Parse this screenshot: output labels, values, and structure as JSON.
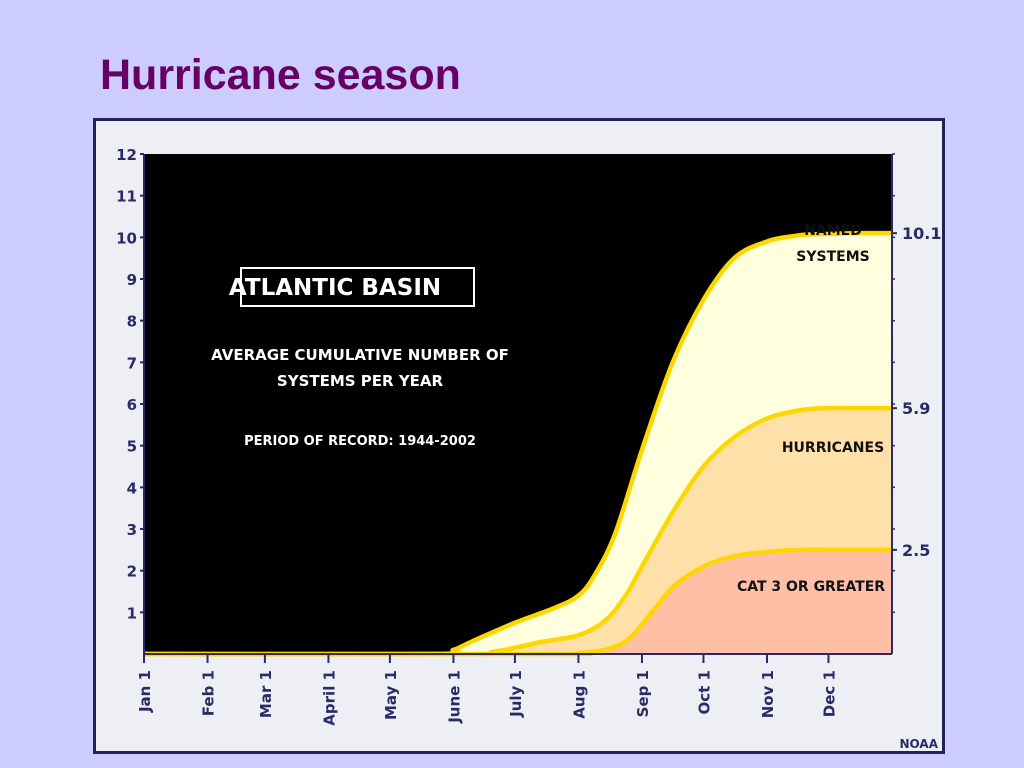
{
  "slide": {
    "title": "Hurricane season"
  },
  "chart_data": {
    "type": "area",
    "title": "ATLANTIC BASIN",
    "subtitle": "AVERAGE CUMULATIVE NUMBER OF SYSTEMS PER YEAR",
    "note": "PERIOD OF RECORD: 1944-2002",
    "source": "NOAA",
    "xlabel": "",
    "ylabel": "",
    "ylim": [
      0,
      12
    ],
    "yticks": [
      "1",
      "2",
      "3",
      "4",
      "5",
      "6",
      "7",
      "8",
      "9",
      "10",
      "11",
      "12"
    ],
    "x_ticks": [
      "Jan 1",
      "Feb 1",
      "Mar 1",
      "April 1",
      "May 1",
      "June 1",
      "July 1",
      "Aug 1",
      "Sep 1",
      "Oct 1",
      "Nov 1",
      "Dec 1"
    ],
    "x_day_of_year": [
      0,
      31,
      59,
      90,
      120,
      151,
      181,
      212,
      243,
      273,
      304,
      334
    ],
    "x_max_day": 365,
    "series": [
      {
        "name": "NAMED SYSTEMS",
        "end_label": "10.1",
        "fill": "#ffffdd",
        "x": [
          0,
          140,
          151,
          160,
          181,
          200,
          212,
          220,
          230,
          243,
          258,
          273,
          288,
          304,
          320,
          334,
          350,
          365
        ],
        "y": [
          0,
          0,
          0.1,
          0.3,
          0.75,
          1.1,
          1.4,
          1.9,
          2.9,
          4.9,
          7.0,
          8.5,
          9.5,
          9.9,
          10.05,
          10.08,
          10.1,
          10.1
        ]
      },
      {
        "name": "HURRICANES",
        "end_label": "5.9",
        "fill": "#ffe0a8",
        "x": [
          0,
          155,
          170,
          181,
          195,
          212,
          225,
          235,
          243,
          258,
          273,
          288,
          304,
          320,
          334,
          350,
          365
        ],
        "y": [
          0,
          0,
          0.05,
          0.15,
          0.3,
          0.45,
          0.8,
          1.4,
          2.1,
          3.4,
          4.5,
          5.2,
          5.65,
          5.85,
          5.9,
          5.9,
          5.9
        ]
      },
      {
        "name": "CAT 3 OR GREATER",
        "end_label": "2.5",
        "fill": "#ffbfa6",
        "x": [
          0,
          200,
          212,
          225,
          235,
          243,
          258,
          273,
          288,
          304,
          320,
          334,
          350,
          365
        ],
        "y": [
          0,
          0,
          0.02,
          0.1,
          0.3,
          0.7,
          1.6,
          2.1,
          2.35,
          2.45,
          2.5,
          2.5,
          2.5,
          2.5
        ]
      }
    ],
    "colors": {
      "line": "#ffd700",
      "plot_bg": "#000000",
      "axis_text": "#2a2a66",
      "frame_bg": "#eeeef5"
    }
  }
}
